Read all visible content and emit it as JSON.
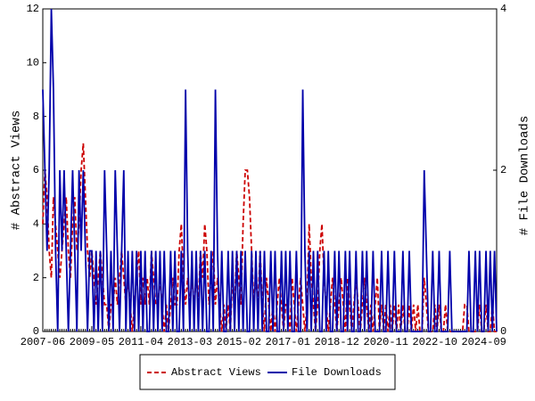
{
  "chart_data": {
    "type": "line",
    "ylabel": "# Abstract Views",
    "y2label": "# File Downloads",
    "categories": [
      "2007-06",
      null,
      null,
      null,
      null,
      null,
      null,
      null,
      null,
      null,
      null,
      null,
      null,
      null,
      null,
      null,
      null,
      null,
      null,
      null,
      null,
      null,
      null,
      "2009-05",
      null,
      null,
      null,
      null,
      null,
      null,
      null,
      null,
      null,
      null,
      null,
      null,
      null,
      null,
      null,
      null,
      null,
      null,
      null,
      null,
      null,
      null,
      "2011-04",
      null,
      null,
      null,
      null,
      null,
      null,
      null,
      null,
      null,
      null,
      null,
      null,
      null,
      null,
      null,
      null,
      null,
      null,
      null,
      null,
      null,
      null,
      "2013-03",
      null,
      null,
      null,
      null,
      null,
      null,
      null,
      null,
      null,
      null,
      null,
      null,
      null,
      null,
      null,
      null,
      null,
      null,
      null,
      null,
      null,
      null,
      "2015-02",
      null,
      null,
      null,
      null,
      null,
      null,
      null,
      null,
      null,
      null,
      null,
      null,
      null,
      null,
      null,
      null,
      null,
      null,
      null,
      null,
      null,
      null,
      "2017-01",
      null,
      null,
      null,
      null,
      null,
      null,
      null,
      null,
      null,
      null,
      null,
      null,
      null,
      null,
      null,
      null,
      null,
      null,
      null,
      null,
      null,
      null,
      "2018-12",
      null,
      null,
      null,
      null,
      null,
      null,
      null,
      null,
      null,
      null,
      null,
      null,
      null,
      null,
      null,
      null,
      null,
      null,
      null,
      null,
      null,
      null,
      "2020-11",
      null,
      null,
      null,
      null,
      null,
      null,
      null,
      null,
      null,
      null,
      null,
      null,
      null,
      null,
      null,
      null,
      null,
      null,
      null,
      null,
      null,
      null,
      "2022-10",
      null,
      null,
      null,
      null,
      null,
      null,
      null,
      null,
      null,
      null,
      null,
      null,
      null,
      null,
      null,
      null,
      null,
      null,
      null,
      null,
      null,
      null,
      "2024-09",
      null,
      null,
      null,
      null,
      null,
      null
    ],
    "series": [
      {
        "name": "Abstract Views",
        "color": "#cc0000",
        "dashed": true,
        "values": [
          4,
          6,
          5,
          3,
          2,
          5,
          4,
          3,
          2,
          3,
          4,
          5,
          3,
          2,
          4,
          5,
          3,
          4,
          6,
          7,
          5,
          3,
          2,
          3,
          2,
          1,
          2,
          3,
          2,
          1,
          1,
          0,
          1,
          1,
          2,
          1,
          2,
          3,
          2,
          1,
          2,
          1,
          0,
          1,
          2,
          3,
          1,
          2,
          1,
          2,
          1,
          3,
          2,
          1,
          1,
          2,
          1,
          0,
          1,
          0,
          1,
          2,
          1,
          1,
          3,
          4,
          2,
          1,
          2,
          1,
          2,
          1,
          2,
          1,
          3,
          2,
          4,
          3,
          1,
          2,
          3,
          1,
          2,
          1,
          0,
          1,
          0,
          1,
          0,
          2,
          1,
          3,
          2,
          1,
          4,
          6,
          6,
          5,
          3,
          1,
          2,
          1,
          3,
          1,
          0,
          2,
          1,
          0,
          1,
          0,
          1,
          2,
          1,
          0,
          1,
          1,
          0,
          2,
          1,
          0,
          1,
          2,
          1,
          0,
          1,
          4,
          2,
          1,
          0,
          1,
          3,
          4,
          2,
          1,
          0,
          1,
          2,
          1,
          0,
          1,
          2,
          1,
          0,
          2,
          1,
          0,
          1,
          2,
          1,
          0,
          1,
          2,
          1,
          0,
          1,
          0,
          1,
          2,
          0,
          1,
          0,
          1,
          0,
          1,
          0,
          1,
          0,
          1,
          0,
          1,
          0,
          0,
          1,
          0,
          1,
          0,
          1,
          0,
          0,
          2,
          1,
          0,
          0,
          0,
          1,
          0,
          1,
          0,
          0,
          1,
          0,
          0,
          0,
          0,
          0,
          0,
          0,
          0,
          1,
          1,
          0,
          0,
          0,
          0,
          0,
          1,
          0,
          0,
          1,
          0,
          0,
          1,
          0,
          0
        ]
      },
      {
        "name": "File Downloads",
        "color": "#0000aa",
        "dashed": false,
        "axis": "y2",
        "values": [
          3,
          2,
          1,
          2,
          4,
          3,
          1,
          0,
          2,
          1,
          2,
          1,
          0,
          1,
          2,
          1,
          0,
          2,
          1,
          2,
          1,
          0,
          1,
          1,
          0,
          1,
          0,
          1,
          0,
          2,
          1,
          0,
          1,
          0,
          2,
          1,
          0,
          1,
          2,
          0,
          1,
          0,
          1,
          0,
          1,
          0,
          1,
          0,
          1,
          0,
          0,
          1,
          0,
          1,
          0,
          1,
          0,
          1,
          0,
          0,
          1,
          0,
          1,
          0,
          0,
          1,
          0,
          3,
          1,
          0,
          1,
          0,
          1,
          0,
          1,
          0,
          1,
          0,
          0,
          1,
          0,
          3,
          1,
          0,
          1,
          0,
          0,
          1,
          0,
          1,
          0,
          1,
          0,
          1,
          0,
          1,
          0,
          0,
          1,
          0,
          1,
          0,
          1,
          0,
          1,
          0,
          0,
          1,
          0,
          1,
          0,
          0,
          1,
          0,
          1,
          0,
          1,
          0,
          0,
          1,
          0,
          0,
          3,
          1,
          0,
          1,
          0,
          1,
          0,
          1,
          0,
          0,
          1,
          0,
          1,
          0,
          0,
          1,
          0,
          1,
          0,
          0,
          1,
          0,
          1,
          0,
          0,
          1,
          0,
          0,
          1,
          0,
          1,
          0,
          0,
          1,
          0,
          0,
          0,
          1,
          0,
          0,
          1,
          0,
          0,
          1,
          0,
          0,
          0,
          1,
          0,
          0,
          1,
          0,
          0,
          0,
          0,
          0,
          0,
          2,
          1,
          0,
          0,
          1,
          0,
          0,
          1,
          0,
          0,
          0,
          0,
          1,
          0,
          0,
          0,
          0,
          0,
          0,
          0,
          0,
          1,
          0,
          0,
          1,
          0,
          1,
          0,
          0,
          1,
          0,
          1,
          0,
          1,
          0
        ]
      }
    ],
    "ylim": [
      0,
      12
    ],
    "yticks": [
      0,
      2,
      4,
      6,
      8,
      10,
      12
    ],
    "y2lim": [
      0,
      4
    ],
    "y2ticks": [
      0,
      2,
      4
    ],
    "legend": "bottom"
  }
}
